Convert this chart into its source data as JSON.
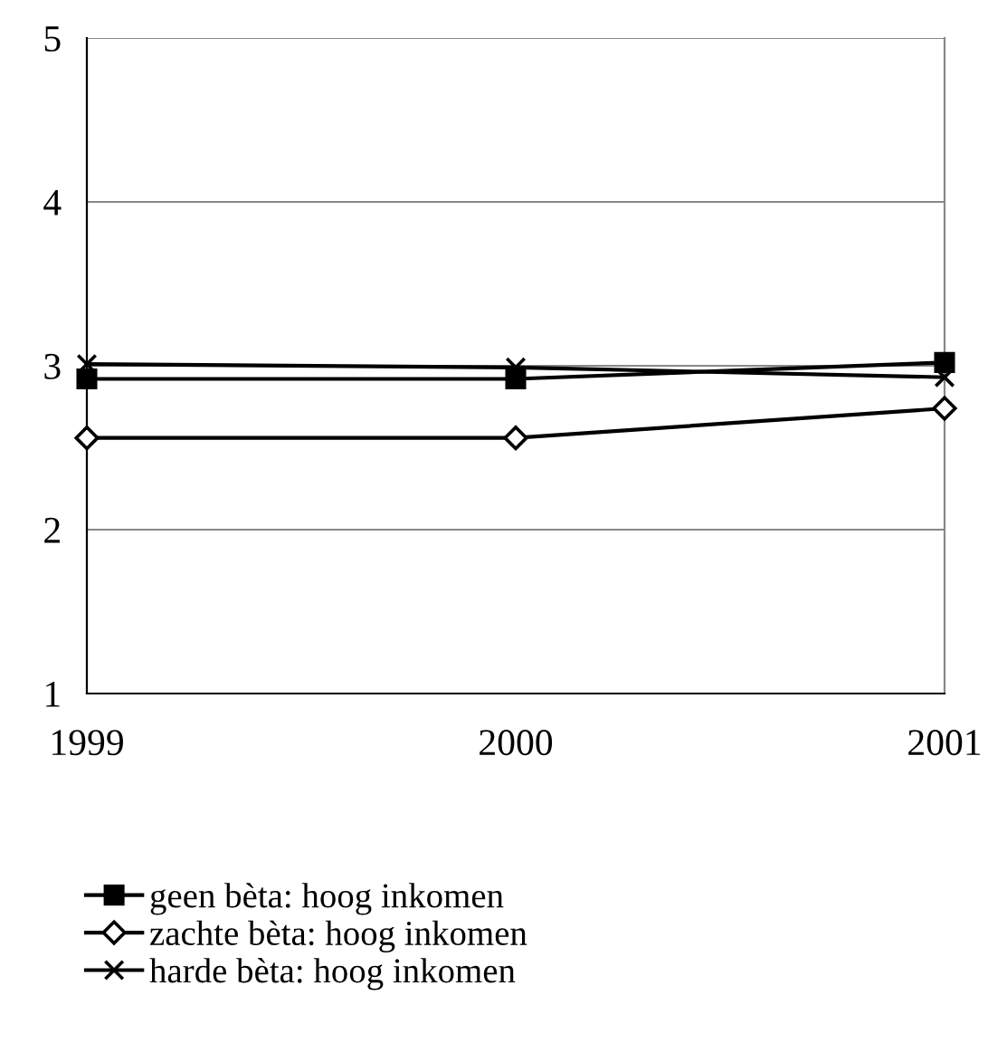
{
  "chart_data": {
    "type": "line",
    "categories": [
      "1999",
      "2000",
      "2001"
    ],
    "series": [
      {
        "name": "geen bèta: hoog inkomen",
        "color": "#000000",
        "marker": "square",
        "values": [
          2.92,
          2.92,
          3.02
        ]
      },
      {
        "name": "zachte bèta: hoog inkomen",
        "color": "#000000",
        "marker": "diamond",
        "values": [
          2.56,
          2.56,
          2.74
        ]
      },
      {
        "name": "harde bèta: hoog inkomen",
        "color": "#000000",
        "marker": "cross",
        "values": [
          3.01,
          2.99,
          2.93
        ]
      }
    ],
    "ylim": [
      1,
      5
    ],
    "yticks": [
      1,
      2,
      3,
      4,
      5
    ],
    "grid": "y",
    "legend": "bottom",
    "line_style": "solid"
  }
}
